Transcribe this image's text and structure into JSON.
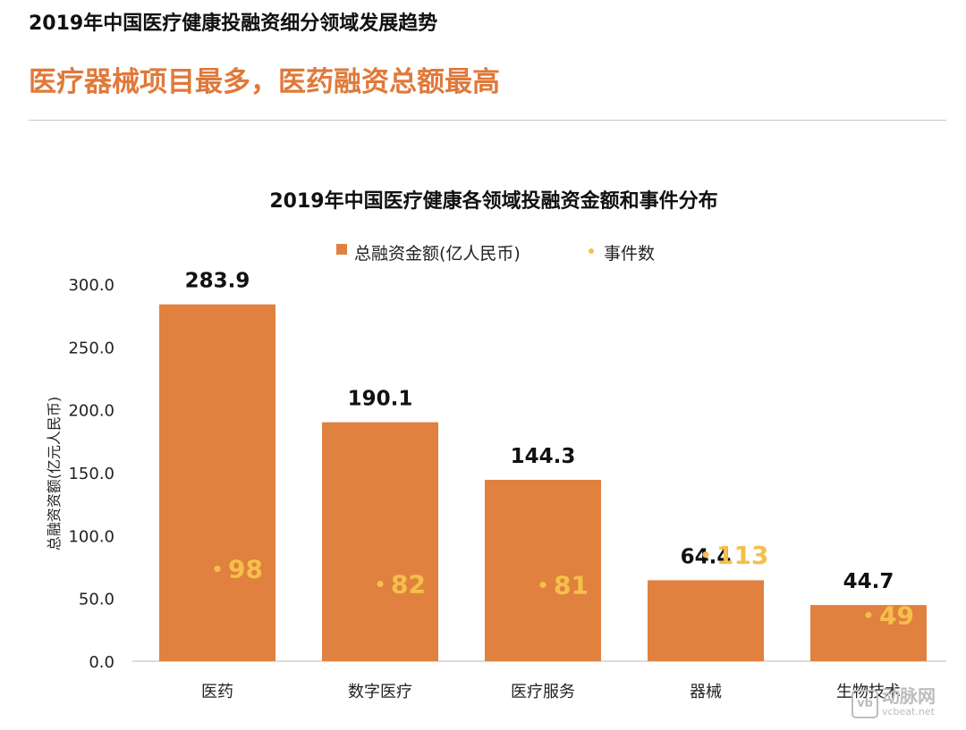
{
  "header": {
    "pre_title": "2019年中国医疗健康投融资细分领域发展趋势",
    "headline": "医疗器械项目最多，医药融资总额最高"
  },
  "colors": {
    "bar": "#e0813f",
    "events": "#f5c04a",
    "accent": "#e0793a"
  },
  "chart_data": {
    "type": "bar",
    "title": "2019年中国医疗健康各领域投融资金额和事件分布",
    "categories": [
      "医药",
      "数字医疗",
      "医疗服务",
      "器械",
      "生物技术"
    ],
    "series": [
      {
        "name": "总融资金额(亿人民币)",
        "type": "bar",
        "values": [
          283.9,
          190.1,
          144.3,
          64.4,
          44.7
        ],
        "labels": [
          "283.9",
          "190.1",
          "144.3",
          "64.4",
          "44.7"
        ]
      },
      {
        "name": "事件数",
        "type": "scatter",
        "values": [
          98,
          82,
          81,
          113,
          49
        ],
        "labels": [
          "98",
          "82",
          "81",
          "113",
          "49"
        ]
      }
    ],
    "ylabel": "总融资资额(亿元人民币)",
    "xlabel": "",
    "ylim": [
      0,
      300
    ],
    "yticks": [
      "0.0",
      "50.0",
      "100.0",
      "150.0",
      "200.0",
      "250.0",
      "300.0"
    ],
    "legend_position": "top-center",
    "grid": false
  },
  "watermark": {
    "logo": "vb",
    "name": "动脉网",
    "url": "vcbeat.net"
  }
}
